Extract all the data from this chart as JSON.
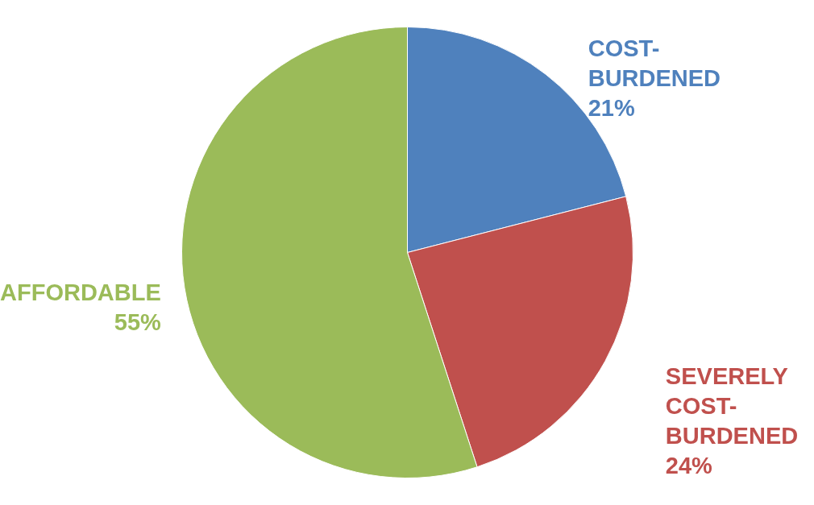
{
  "chart_data": {
    "type": "pie",
    "categories": [
      "COST-BURDENED",
      "SEVERELY COST-BURDENED",
      "AFFORDABLE"
    ],
    "values": [
      21,
      24,
      55
    ],
    "value_labels": [
      "21%",
      "24%",
      "55%"
    ],
    "colors": [
      "#4f81bd",
      "#c0504d",
      "#9bbb59"
    ],
    "legend": false
  }
}
